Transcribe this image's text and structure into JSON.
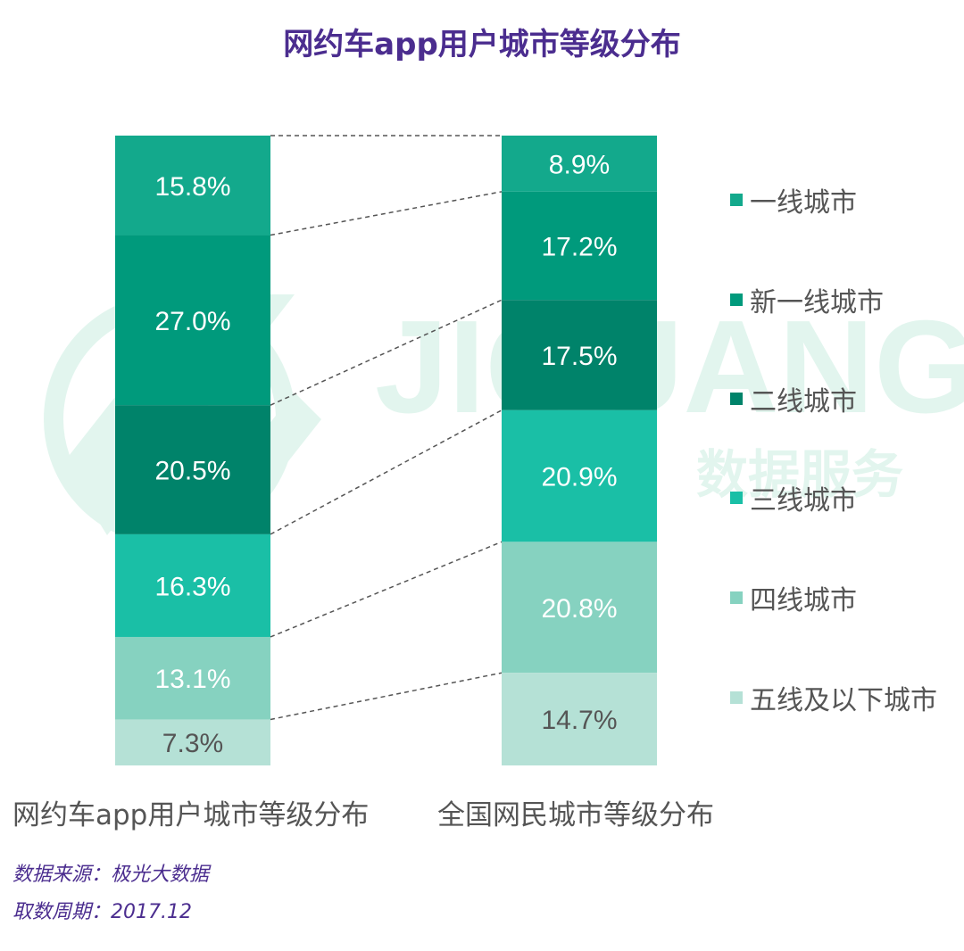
{
  "title": "网约车app用户城市等级分布",
  "watermark": {
    "latin": "JIGUANG",
    "chinese": "数据服务"
  },
  "footnotes": {
    "source": "数据来源：极光大数据",
    "period": "取数周期：2017.12"
  },
  "chart_data": {
    "type": "stacked-bar-100",
    "title": "网约车app用户城市等级分布",
    "categories": [
      "一线城市",
      "新一线城市",
      "二线城市",
      "三线城市",
      "四线城市",
      "五线及以下城市"
    ],
    "colors": [
      "#13a98c",
      "#009a7c",
      "#00836a",
      "#1abfa6",
      "#86d2c0",
      "#b5e1d6"
    ],
    "label_colors": [
      "#ffffff",
      "#ffffff",
      "#ffffff",
      "#ffffff",
      "#ffffff",
      "#555555"
    ],
    "bars": [
      {
        "name": "网约车app用户城市等级分布",
        "values": [
          15.8,
          27.0,
          20.5,
          16.3,
          13.1,
          7.3
        ],
        "labels": [
          "15.8%",
          "27.0%",
          "20.5%",
          "16.3%",
          "13.1%",
          "7.3%"
        ]
      },
      {
        "name": "全国网民城市等级分布",
        "values": [
          8.9,
          17.2,
          17.5,
          20.9,
          20.8,
          14.7
        ],
        "labels": [
          "8.9%",
          "17.2%",
          "17.5%",
          "20.9%",
          "20.8%",
          "14.7%"
        ]
      }
    ],
    "legend_position": "right",
    "connector_lines": "dashed"
  }
}
